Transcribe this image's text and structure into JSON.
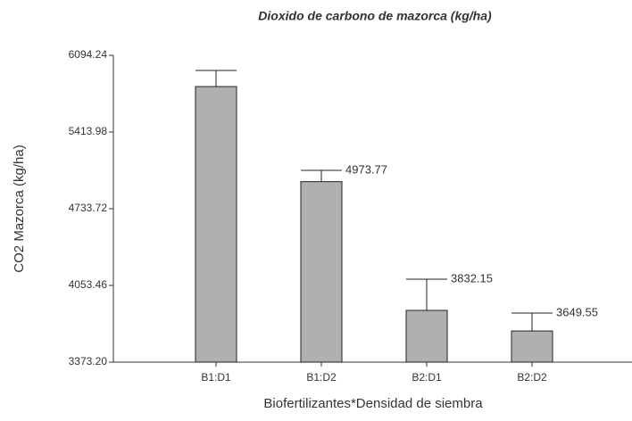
{
  "chart_data": {
    "type": "bar",
    "title": "Dioxido de carbono de mazorca (kg/ha)",
    "x_label": "Biofertilizantes*Densidad de siembra",
    "y_label": "CO2 Mazorca (kg/ha)",
    "categories": [
      "B1:D1",
      "B1:D2",
      "B2:D1",
      "B2:D2"
    ],
    "values": [
      5817,
      4973.77,
      3832.15,
      3649.55
    ],
    "value_labels": [
      null,
      "4973.77",
      "3832.15",
      "3649.55"
    ],
    "errors": [
      143,
      100,
      277,
      159
    ],
    "color": "#b0b0b0",
    "ylim": [
      3373.2,
      6094.24
    ],
    "yticks": [
      {
        "value": 3373.2,
        "label": "3373.20"
      },
      4053.46,
      4733.72,
      5413.98,
      6094.24
    ]
  }
}
